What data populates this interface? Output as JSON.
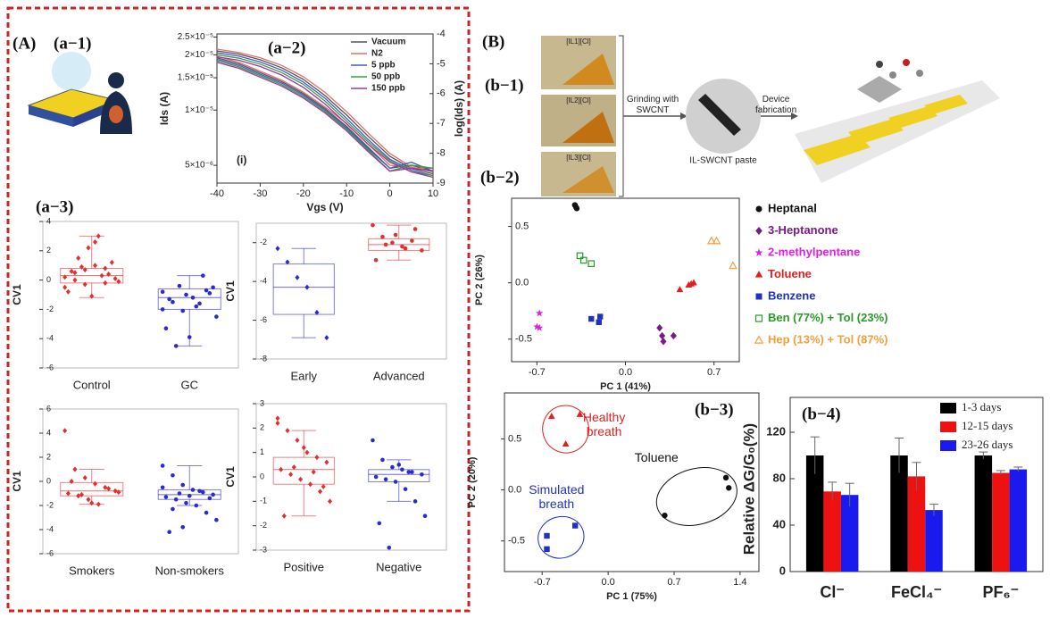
{
  "panel_labels": {
    "A": "(A)",
    "a1": "(a−1)",
    "a2": "(a−2)",
    "a3": "(a−3)",
    "B": "(B)",
    "b1": "(b−1)",
    "b2": "(b−2)",
    "b3": "(b−3)",
    "b4": "(b−4)"
  },
  "diagram": {
    "photos": [
      "[IL1][Cl]",
      "[IL2][Cl]",
      "[IL3][Cl]"
    ],
    "step1": "Grinding with SWCNT",
    "paste": "IL-SWCNT paste",
    "step2": "Device fabrication"
  },
  "chart_data": [
    {
      "type": "line",
      "label": "(i)",
      "xlabel": "Vgs (V)",
      "ylabel": "Ids (A)",
      "y2label": "log(Ids) (A)",
      "x": [
        -40,
        -35,
        -30,
        -25,
        -20,
        -15,
        -10,
        -5,
        0,
        5,
        10
      ],
      "xlim": [
        -40,
        10
      ],
      "xticks": [
        -40,
        -30,
        -20,
        -10,
        0,
        10
      ],
      "ylog": true,
      "ylim": [
        4e-06,
        2.6e-05
      ],
      "yticks": [
        {
          "value": 5e-06,
          "label": "5×10⁻⁶"
        },
        {
          "value": 1e-05,
          "label": "1×10⁻⁵"
        },
        {
          "value": 1.5e-05,
          "label": "1.5×10⁻⁵"
        },
        {
          "value": 2e-05,
          "label": "2×10⁻⁵"
        },
        {
          "value": 2.5e-05,
          "label": "2.5×10⁻⁵"
        }
      ],
      "y2lim": [
        -9,
        -4
      ],
      "y2ticks": [
        -4,
        -5,
        -6,
        -7,
        -8,
        -9
      ],
      "legend": "upper right",
      "series": [
        {
          "name": "Vacuum",
          "color": "#555555",
          "values": [
            2.1e-05,
            2.02e-05,
            1.88e-05,
            1.7e-05,
            1.47e-05,
            1.2e-05,
            9.4e-06,
            7.2e-06,
            5.6e-06,
            4.8e-06,
            4.5e-06
          ],
          "y2_values": [
            -4.8,
            -5.0,
            -5.3,
            -5.6,
            -6.0,
            -6.5,
            -7.1,
            -7.8,
            -8.5,
            -8.4,
            -8.6
          ]
        },
        {
          "name": "N2",
          "color": "#e07070",
          "values": [
            2.15e-05,
            2.06e-05,
            1.93e-05,
            1.75e-05,
            1.52e-05,
            1.25e-05,
            9.8e-06,
            7.5e-06,
            5.8e-06,
            4.9e-06,
            4.6e-06
          ],
          "y2_values": [
            -4.75,
            -4.95,
            -5.25,
            -5.55,
            -5.95,
            -6.45,
            -7.0,
            -7.7,
            -8.4,
            -8.5,
            -8.5
          ]
        },
        {
          "name": "5 ppb",
          "color": "#4a5ac0",
          "values": [
            2.05e-05,
            1.97e-05,
            1.83e-05,
            1.65e-05,
            1.42e-05,
            1.16e-05,
            9e-06,
            6.9e-06,
            5.4e-06,
            4.7e-06,
            4.4e-06
          ],
          "y2_values": [
            -4.85,
            -5.05,
            -5.35,
            -5.65,
            -6.05,
            -6.55,
            -7.15,
            -7.85,
            -8.5,
            -8.3,
            -8.6
          ]
        },
        {
          "name": "50 ppb",
          "color": "#3a9a4a",
          "values": [
            2e-05,
            1.92e-05,
            1.78e-05,
            1.6e-05,
            1.38e-05,
            1.12e-05,
            8.7e-06,
            6.7e-06,
            5.3e-06,
            4.6e-06,
            4.4e-06
          ],
          "y2_values": [
            -4.9,
            -5.1,
            -5.4,
            -5.7,
            -6.1,
            -6.6,
            -7.2,
            -7.9,
            -8.6,
            -8.4,
            -8.5
          ]
        },
        {
          "name": "150 ppb",
          "color": "#9a3a9a",
          "values": [
            1.95e-05,
            1.87e-05,
            1.73e-05,
            1.55e-05,
            1.33e-05,
            1.08e-05,
            8.4e-06,
            6.5e-06,
            5.2e-06,
            4.6e-06,
            4.3e-06
          ],
          "y2_values": [
            -4.95,
            -5.15,
            -5.45,
            -5.75,
            -6.15,
            -6.65,
            -7.25,
            -7.95,
            -8.6,
            -8.5,
            -8.6
          ]
        }
      ]
    },
    {
      "type": "box",
      "ylabel": "CV1",
      "ylim": [
        -6,
        4
      ],
      "yticks": [
        -6,
        -4,
        -2,
        0,
        2,
        4
      ],
      "categories": [
        "Control",
        "GC"
      ],
      "colors": [
        "#e03030",
        "#2a2ad0"
      ],
      "boxes": [
        {
          "q1": -0.2,
          "median": 0.3,
          "q3": 0.8,
          "whisker_low": -1.2,
          "whisker_high": 3.0,
          "points": [
            0.2,
            0.5,
            -0.3,
            1.0,
            0.8,
            0.1,
            -0.8,
            1.5,
            2.2,
            3.0,
            0.4,
            -0.1,
            0.6,
            0.9,
            -1.1,
            0.3,
            1.2,
            -0.5,
            0.0,
            0.7,
            2.6,
            -0.2
          ]
        },
        {
          "q1": -2.0,
          "median": -1.2,
          "q3": -0.6,
          "whisker_low": -4.5,
          "whisker_high": 0.3,
          "points": [
            -0.8,
            -1.5,
            -2.1,
            -1.2,
            0.3,
            -0.5,
            -3.3,
            -4.5,
            -1.0,
            -1.8,
            -0.7,
            -2.5,
            -1.3,
            -0.4,
            -3.9,
            -1.6,
            -0.9,
            -2.0
          ]
        }
      ]
    },
    {
      "type": "box",
      "ylabel": "CV1",
      "ylim": [
        -8,
        -1
      ],
      "yticks": [
        -8,
        -6,
        -4,
        -2
      ],
      "categories": [
        "Early",
        "Advanced"
      ],
      "colors": [
        "#2a2ad0",
        "#e03030"
      ],
      "boxes": [
        {
          "q1": -5.7,
          "median": -4.3,
          "q3": -3.1,
          "whisker_low": -6.9,
          "whisker_high": -2.3,
          "points": [
            -2.3,
            -3.0,
            -3.8,
            -4.3,
            -5.6,
            -6.9
          ]
        },
        {
          "q1": -2.4,
          "median": -2.1,
          "q3": -1.8,
          "whisker_low": -2.9,
          "whisker_high": -1.1,
          "points": [
            -1.1,
            -1.7,
            -2.0,
            -2.2,
            -1.9,
            -2.4,
            -2.9,
            -2.1,
            -1.6,
            -2.3,
            -1.3
          ]
        }
      ]
    },
    {
      "type": "box",
      "ylabel": "CV1",
      "ylim": [
        -6,
        6
      ],
      "yticks": [
        -6,
        -4,
        -2,
        0,
        2,
        4,
        6
      ],
      "categories": [
        "Smokers",
        "Non-smokers"
      ],
      "colors": [
        "#e03030",
        "#2a2ad0"
      ],
      "boxes": [
        {
          "q1": -1.2,
          "median": -0.8,
          "q3": -0.1,
          "whisker_low": -1.9,
          "whisker_high": 1.0,
          "points": [
            4.2,
            1.0,
            0.3,
            -0.2,
            -0.5,
            -0.8,
            -1.0,
            -1.2,
            -1.5,
            -1.9,
            -0.6,
            -0.9,
            0.0,
            -1.1,
            -1.8
          ]
        },
        {
          "q1": -1.5,
          "median": -1.1,
          "q3": -0.7,
          "whisker_low": -2.0,
          "whisker_high": 1.3,
          "points": [
            1.3,
            0.5,
            -0.3,
            -0.7,
            -0.9,
            -1.1,
            -1.3,
            -1.5,
            -1.8,
            -2.0,
            -2.6,
            -3.2,
            -4.2,
            -1.0,
            -1.2,
            -0.8,
            -1.4,
            -0.5,
            -2.3,
            -3.8
          ]
        }
      ]
    },
    {
      "type": "box",
      "ylabel": "CV1",
      "ylim": [
        -3,
        3
      ],
      "yticks": [
        -3,
        -2,
        -1,
        0,
        1,
        2,
        3
      ],
      "categories": [
        "Positive",
        "Negative"
      ],
      "colors": [
        "#e03030",
        "#2a2ad0"
      ],
      "boxes": [
        {
          "q1": -0.3,
          "median": 0.3,
          "q3": 0.8,
          "whisker_low": -1.6,
          "whisker_high": 1.9,
          "points": [
            2.4,
            1.9,
            1.5,
            1.0,
            0.8,
            0.6,
            0.3,
            0.1,
            -0.1,
            -0.3,
            -0.6,
            -1.0,
            -1.6,
            0.4,
            1.2,
            0.2,
            -0.4,
            2.2
          ]
        },
        {
          "q1": -0.2,
          "median": 0.1,
          "q3": 0.3,
          "whisker_low": -1.0,
          "whisker_high": 0.7,
          "points": [
            1.5,
            0.7,
            0.4,
            0.3,
            0.2,
            0.1,
            0.0,
            -0.1,
            -0.2,
            -0.5,
            -1.0,
            -1.6,
            -1.9,
            -2.9,
            0.5,
            0.2
          ]
        }
      ]
    },
    {
      "type": "scatter",
      "xlabel": "PC 1 (41%)",
      "ylabel": "PC 2 (26%)",
      "xlim": [
        -0.9,
        0.9
      ],
      "xticks": [
        -0.7,
        {
          "value": 0,
          "label": "0.0"
        },
        0.7
      ],
      "ylim": [
        -0.7,
        0.75
      ],
      "yticks": [
        -0.5,
        {
          "value": 0,
          "label": "0.0"
        },
        0.5
      ],
      "legend": "right",
      "series": [
        {
          "name": "Heptanal",
          "color": "#111111",
          "marker": "circle",
          "x": [
            -0.4,
            -0.39,
            -0.385
          ],
          "y": [
            0.69,
            0.67,
            0.66
          ]
        },
        {
          "name": "3-Heptanone",
          "color": "#7a1a8a",
          "marker": "diamond",
          "x": [
            0.27,
            0.3,
            0.38,
            0.29
          ],
          "y": [
            -0.4,
            -0.52,
            -0.47,
            -0.47
          ]
        },
        {
          "name": "2-methylpentane",
          "color": "#e020e0",
          "marker": "star",
          "x": [
            -0.68,
            -0.7,
            -0.68
          ],
          "y": [
            -0.27,
            -0.39,
            -0.4
          ]
        },
        {
          "name": "Toluene",
          "color": "#e02020",
          "marker": "triangle",
          "x": [
            0.43,
            0.5,
            0.54,
            0.52
          ],
          "y": [
            -0.06,
            -0.02,
            0.0,
            -0.01
          ]
        },
        {
          "name": "Benzene",
          "color": "#2030c0",
          "marker": "square",
          "x": [
            -0.27,
            -0.21,
            -0.2
          ],
          "y": [
            -0.32,
            -0.35,
            -0.3
          ]
        },
        {
          "name": "Ben (77%) + Tol (23%)",
          "color": "#2a9a2a",
          "marker": "open-square",
          "x": [
            -0.36,
            -0.33,
            -0.27
          ],
          "y": [
            0.24,
            0.2,
            0.17
          ]
        },
        {
          "name": "Hep (13%) + Tol (87%)",
          "color": "#f0a040",
          "marker": "open-triangle",
          "x": [
            0.68,
            0.72,
            0.85
          ],
          "y": [
            0.37,
            0.37,
            0.15
          ]
        }
      ]
    },
    {
      "type": "scatter",
      "xlabel": "PC 1 (75%)",
      "ylabel": "PC 2 (20%)",
      "xlim": [
        -1.1,
        1.6
      ],
      "xticks": [
        -0.7,
        {
          "value": 0,
          "label": "0.0"
        },
        0.7,
        1.4
      ],
      "ylim": [
        -0.8,
        0.95
      ],
      "yticks": [
        -0.5,
        {
          "value": 0,
          "label": "0.0"
        },
        0.5
      ],
      "legend": "none",
      "series": [
        {
          "name": "Healthy breath",
          "color": "#e02020",
          "marker": "triangle",
          "x": [
            -0.6,
            -0.3,
            -0.45
          ],
          "y": [
            0.72,
            0.74,
            0.45
          ]
        },
        {
          "name": "Simulated breath",
          "color": "#2030c0",
          "marker": "square",
          "x": [
            -0.65,
            -0.65,
            -0.35
          ],
          "y": [
            -0.45,
            -0.58,
            -0.35
          ]
        },
        {
          "name": "Toluene",
          "color": "#111111",
          "marker": "circle",
          "x": [
            0.6,
            1.25,
            1.28
          ],
          "y": [
            -0.25,
            0.12,
            0.02
          ]
        }
      ]
    },
    {
      "type": "bar",
      "ylabel": "Relative ΔG/G₀(%)",
      "categories": [
        "Cl⁻",
        "FeCl₄⁻",
        "PF₆⁻"
      ],
      "ylim": [
        0,
        150
      ],
      "yticks": [
        0,
        40,
        80,
        120
      ],
      "legend": "upper right",
      "series": [
        {
          "name": "1-3 days",
          "color": "#000000",
          "values": [
            100,
            100,
            100
          ],
          "errors": [
            16,
            15,
            3
          ]
        },
        {
          "name": "12-15 days",
          "color": "#ee1111",
          "values": [
            69,
            82,
            85
          ],
          "errors": [
            8,
            12,
            2
          ]
        },
        {
          "name": "23-26 days",
          "color": "#1a1aee",
          "values": [
            66,
            53,
            88
          ],
          "errors": [
            10,
            5,
            2
          ]
        }
      ]
    }
  ]
}
